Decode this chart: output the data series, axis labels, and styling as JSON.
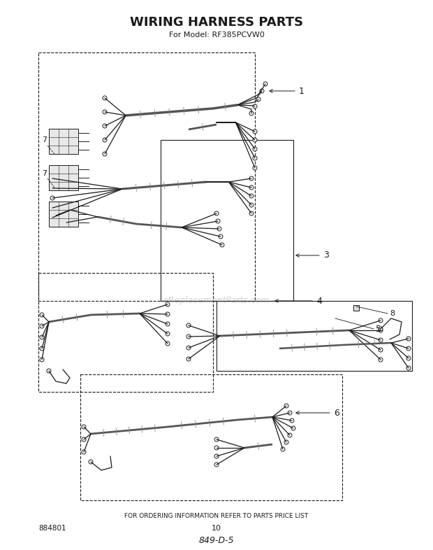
{
  "title": "WIRING HARNESS PARTS",
  "subtitle": "For Model: RF385PCVW0",
  "footer_text": "FOR ORDERING INFORMATION REFER TO PARTS PRICE LIST",
  "page_number": "10",
  "part_number_bottom": "884801",
  "diagram_code": "849-D-5",
  "watermark": "eReplacementParts.com",
  "bg_color": "#ffffff",
  "line_color": "#1a1a1a",
  "panel_lw": 0.8,
  "wire_lw": 1.0,
  "bundle_lw": 2.2,
  "terminal_r": 0.004,
  "fig_width": 6.2,
  "fig_height": 7.86,
  "dpi": 100
}
